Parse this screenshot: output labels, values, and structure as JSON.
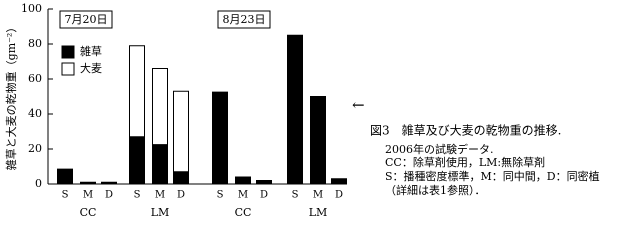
{
  "chart_data": {
    "type": "bar",
    "stacked": true,
    "y_label": "雑草と大麦の乾物重（gm⁻²）",
    "panels": [
      "7月20日",
      "8月23日"
    ],
    "groups": [
      "CC",
      "LM",
      "CC",
      "LM"
    ],
    "categories": [
      "S",
      "M",
      "D",
      "S",
      "M",
      "D",
      "S",
      "M",
      "D",
      "S",
      "M",
      "D"
    ],
    "series": [
      {
        "name": "雑草",
        "color": "#000000",
        "values": [
          8.5,
          1,
          1,
          27,
          22.5,
          7,
          52.5,
          4,
          2,
          85,
          50,
          3
        ]
      },
      {
        "name": "大麦",
        "color": "#ffffff",
        "values": [
          0,
          0,
          0,
          52,
          43.5,
          46,
          0,
          0,
          0,
          0,
          0,
          0
        ]
      }
    ],
    "ylim": [
      0,
      100
    ],
    "yticks": [
      0,
      20,
      40,
      60,
      80,
      100
    ]
  },
  "caption": {
    "arrow": "←",
    "title": "図3　雑草及び大麦の乾物重の推移.",
    "notes": [
      "2006年の試験データ.",
      "CC：除草剤使用，LM:無除草剤",
      "S：播種密度標準，M：同中間，D：同密植",
      "（詳細は表1参照）．"
    ]
  }
}
